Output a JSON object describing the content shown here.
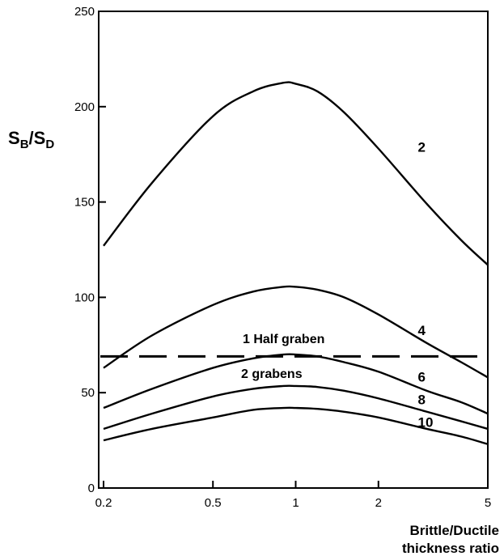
{
  "chart_data": {
    "type": "line",
    "xlabel_lines": [
      "Brittle/Ductile",
      "thickness ratio"
    ],
    "ylabel": {
      "main_s": "S",
      "sub_b": "B",
      "slash": "/",
      "main_s2": "S",
      "sub_d": "D"
    },
    "x_scale": "log",
    "xlim": [
      0.2,
      5
    ],
    "ylim": [
      0,
      250
    ],
    "x_ticks": [
      0.2,
      0.5,
      1,
      2,
      5
    ],
    "x_tick_labels": [
      "0.2",
      "0.5",
      "1",
      "2",
      "5"
    ],
    "y_ticks": [
      0,
      50,
      100,
      150,
      200,
      250
    ],
    "y_tick_labels": [
      "0",
      "50",
      "100",
      "150",
      "200",
      "250"
    ],
    "grid": false,
    "series": [
      {
        "name": "2",
        "x": [
          0.2,
          0.3,
          0.5,
          0.7,
          0.9,
          1.0,
          1.2,
          1.5,
          2,
          3,
          4,
          5
        ],
        "y": [
          127,
          160,
          195,
          208,
          212.5,
          212,
          208,
          197,
          178,
          149,
          130,
          117
        ]
      },
      {
        "name": "4",
        "x": [
          0.2,
          0.3,
          0.5,
          0.7,
          0.9,
          1.0,
          1.2,
          1.5,
          2,
          3,
          4,
          5
        ],
        "y": [
          63,
          80,
          96,
          103,
          105.5,
          105.5,
          104,
          100,
          91,
          76,
          66,
          58
        ]
      },
      {
        "name": "6",
        "x": [
          0.2,
          0.3,
          0.5,
          0.7,
          0.9,
          1.0,
          1.2,
          1.5,
          2,
          3,
          4,
          5
        ],
        "y": [
          42,
          52,
          63,
          68,
          70,
          70,
          69,
          66,
          61,
          51,
          45,
          39
        ]
      },
      {
        "name": "8",
        "x": [
          0.2,
          0.3,
          0.5,
          0.7,
          0.9,
          1.0,
          1.2,
          1.5,
          2,
          3,
          4,
          5
        ],
        "y": [
          31,
          39,
          48,
          52,
          53.5,
          53.5,
          53,
          51,
          47,
          40,
          35,
          31
        ]
      },
      {
        "name": "10",
        "x": [
          0.2,
          0.3,
          0.5,
          0.7,
          0.9,
          1.0,
          1.2,
          1.5,
          2,
          3,
          4,
          5
        ],
        "y": [
          25,
          31,
          37,
          41,
          42,
          42,
          41.5,
          40,
          37,
          31,
          27,
          23
        ]
      }
    ],
    "threshold": {
      "y": 69,
      "style": "dashed"
    },
    "annotations": {
      "upper": "1 Half graben",
      "lower": "2 grabens"
    }
  }
}
